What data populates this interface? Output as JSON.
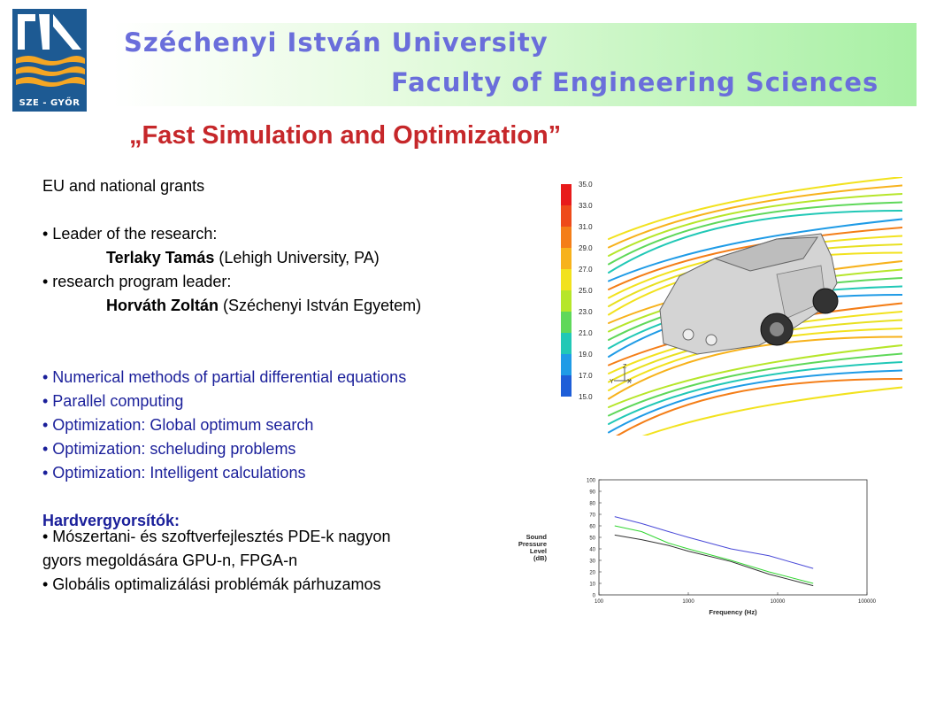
{
  "header": {
    "university": "Széchenyi István University",
    "faculty": "Faculty of Engineering Sciences",
    "logo_text": "SZE - GYŐR"
  },
  "title": "„Fast Simulation and Optimization”",
  "content": {
    "grants": "EU and national grants",
    "leader_label": "• Leader of the research:",
    "leader_name": "Terlaky Tamás",
    "leader_affil": " (Lehigh University, PA)",
    "program_label": "• research program leader:",
    "program_name": "Horváth Zoltán",
    "program_affil": " (Széchenyi István Egyetem)",
    "topics": [
      "• Numerical methods of partial differential equations",
      "• Parallel computing",
      "• Optimization: Global optimum search",
      "• Optimization: scheluding problems",
      "• Optimization: Intelligent calculations"
    ],
    "hw_title": "Hardvergyorsítók:",
    "hw_lines": [
      "• Mószertani- és szoftverfejlesztés PDE-k nagyon",
      "gyors megoldására GPU-n, FPGA-n",
      "• Globális optimalizálási problémák párhuzamos"
    ]
  },
  "cfd_legend": {
    "values": [
      "35.0",
      "33.0",
      "31.0",
      "29.0",
      "27.0",
      "25.0",
      "23.0",
      "21.0",
      "19.0",
      "17.0",
      "15.0"
    ],
    "colors": [
      "#e81b1b",
      "#ee4a1a",
      "#f47e18",
      "#f7b21c",
      "#f2e21e",
      "#b6e62a",
      "#5fd85a",
      "#21c8b6",
      "#1f9be6",
      "#1e5ed8",
      "#1a1fd0"
    ],
    "axis_labels": [
      "Z",
      "Y",
      "X"
    ]
  },
  "chart_data": {
    "type": "line",
    "ylabel": "Sound Pressure Level (dB)",
    "xlabel": "Frequency (Hz)",
    "x_scale": "log",
    "xlim": [
      100,
      100000
    ],
    "ylim": [
      0,
      100
    ],
    "x_ticks": [
      "100",
      "1000",
      "10000",
      "100000"
    ],
    "y_ticks": [
      "100",
      "90",
      "80",
      "70",
      "60",
      "50",
      "40",
      "30",
      "20",
      "10",
      "0"
    ],
    "series": [
      {
        "color": "#4a4ad8",
        "points": [
          [
            150,
            68
          ],
          [
            300,
            62
          ],
          [
            600,
            55
          ],
          [
            1000,
            50
          ],
          [
            3000,
            40
          ],
          [
            8000,
            34
          ],
          [
            25000,
            23
          ]
        ]
      },
      {
        "color": "#33d633",
        "points": [
          [
            150,
            60
          ],
          [
            300,
            55
          ],
          [
            600,
            45
          ],
          [
            1000,
            40
          ],
          [
            3000,
            30
          ],
          [
            8000,
            20
          ],
          [
            25000,
            10
          ]
        ]
      },
      {
        "color": "#333333",
        "points": [
          [
            150,
            52
          ],
          [
            300,
            48
          ],
          [
            600,
            43
          ],
          [
            1000,
            38
          ],
          [
            3000,
            29
          ],
          [
            8000,
            18
          ],
          [
            25000,
            8
          ]
        ]
      }
    ]
  }
}
